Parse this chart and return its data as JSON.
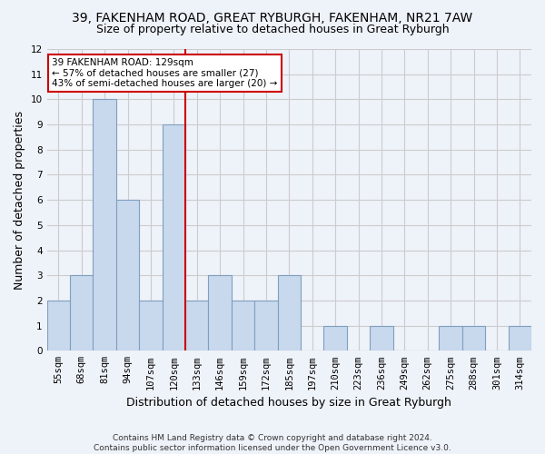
{
  "title": "39, FAKENHAM ROAD, GREAT RYBURGH, FAKENHAM, NR21 7AW",
  "subtitle": "Size of property relative to detached houses in Great Ryburgh",
  "xlabel": "Distribution of detached houses by size in Great Ryburgh",
  "ylabel": "Number of detached properties",
  "footnote1": "Contains HM Land Registry data © Crown copyright and database right 2024.",
  "footnote2": "Contains public sector information licensed under the Open Government Licence v3.0.",
  "bin_labels": [
    "55sqm",
    "68sqm",
    "81sqm",
    "94sqm",
    "107sqm",
    "120sqm",
    "133sqm",
    "146sqm",
    "159sqm",
    "172sqm",
    "185sqm",
    "197sqm",
    "210sqm",
    "223sqm",
    "236sqm",
    "249sqm",
    "262sqm",
    "275sqm",
    "288sqm",
    "301sqm",
    "314sqm"
  ],
  "bar_heights": [
    2,
    3,
    10,
    6,
    2,
    9,
    2,
    3,
    2,
    2,
    3,
    0,
    1,
    0,
    1,
    0,
    0,
    1,
    1,
    0,
    1
  ],
  "bar_color": "#c9d9ed",
  "bar_edge_color": "#7f9fbf",
  "grid_color": "#cccccc",
  "reference_line_x": 5.5,
  "reference_line_color": "#cc0000",
  "annotation_text": "39 FAKENHAM ROAD: 129sqm\n← 57% of detached houses are smaller (27)\n43% of semi-detached houses are larger (20) →",
  "annotation_box_color": "#ffffff",
  "annotation_box_edge": "#cc0000",
  "ylim": [
    0,
    12
  ],
  "yticks": [
    0,
    1,
    2,
    3,
    4,
    5,
    6,
    7,
    8,
    9,
    10,
    11,
    12
  ],
  "bg_color": "#eef2f9",
  "title_fontsize": 10,
  "subtitle_fontsize": 9,
  "ylabel_fontsize": 9,
  "xlabel_fontsize": 9,
  "tick_fontsize": 7.5,
  "annot_fontsize": 7.5,
  "footnote_fontsize": 6.5
}
